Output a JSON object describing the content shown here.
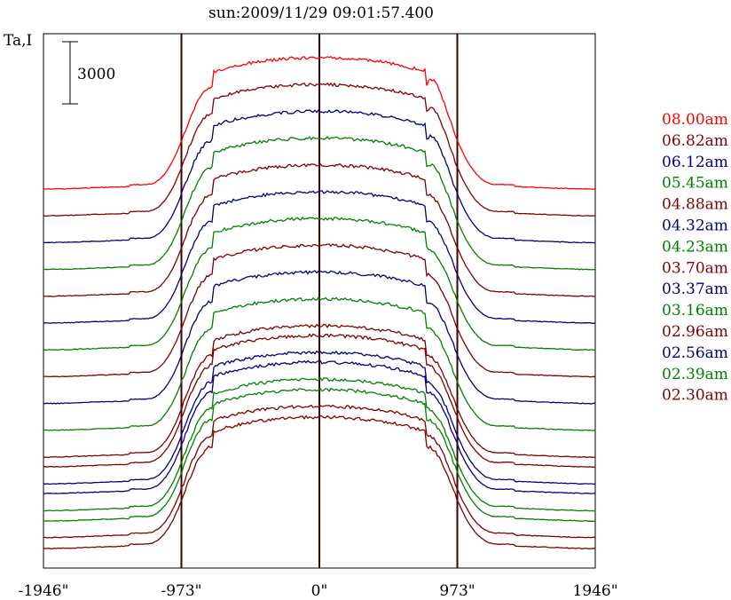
{
  "chart_data": {
    "type": "line",
    "title": "sun:2009/11/29 09:01:57.400",
    "ylabel": "Ta,I",
    "scale_bar_label": "3000",
    "x_tick_labels": [
      "-1946\"",
      "-973\"",
      "0\"",
      "973\"",
      "1946\""
    ],
    "x_ticks": [
      -1946,
      -973,
      0,
      973,
      1946
    ],
    "xlim": [
      -1946,
      1946
    ],
    "vertical_lines": [
      -973,
      0,
      973
    ],
    "grid": false,
    "legend_position": "right",
    "series": [
      {
        "name": "08.00am",
        "color": "#ff0000",
        "peak_bump": 1.0
      },
      {
        "name": "06.82am",
        "color": "#800000",
        "peak_bump": 0.85
      },
      {
        "name": "06.12am",
        "color": "#000080",
        "peak_bump": 0.7
      },
      {
        "name": "05.45am",
        "color": "#008000",
        "peak_bump": 0.55
      },
      {
        "name": "04.88am",
        "color": "#800000",
        "peak_bump": 0.0
      },
      {
        "name": "04.32am",
        "color": "#000080",
        "peak_bump": 0.0
      },
      {
        "name": "04.23am",
        "color": "#008000",
        "peak_bump": 0.0
      },
      {
        "name": "03.70am",
        "color": "#800000",
        "peak_bump": 0.0
      },
      {
        "name": "03.37am",
        "color": "#000080",
        "peak_bump": 0.0
      },
      {
        "name": "03.16am",
        "color": "#008000",
        "peak_bump": 0.0
      },
      {
        "name": "02.96am",
        "color": "#800000",
        "peak_bump": 0.0
      },
      {
        "name": "02.56am",
        "color": "#000080",
        "peak_bump": 0.0
      },
      {
        "name": "02.39am",
        "color": "#008000",
        "peak_bump": 0.0
      },
      {
        "name": "02.30am",
        "color": "#800000",
        "peak_bump": 0.0
      }
    ],
    "extra_baselines_colors": [
      "#800000",
      "#000080",
      "#008000",
      "#800000"
    ]
  },
  "colors": {
    "axis": "#000000",
    "vertical_line": "#400000"
  }
}
